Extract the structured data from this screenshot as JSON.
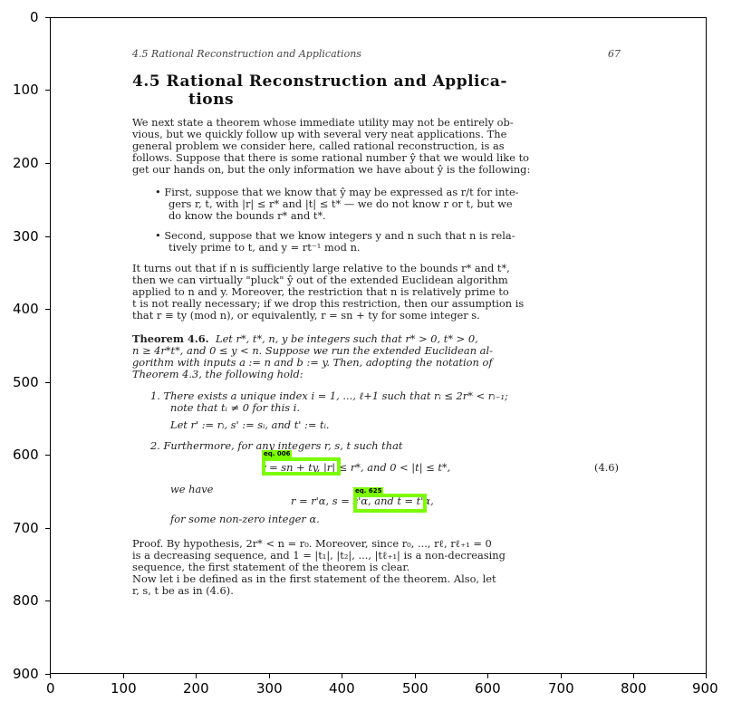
{
  "x_ticks": [
    "0",
    "100",
    "200",
    "300",
    "400",
    "500",
    "600",
    "700",
    "800",
    "900"
  ],
  "y_ticks": [
    "0",
    "100",
    "200",
    "300",
    "400",
    "500",
    "600",
    "700",
    "800",
    "900"
  ],
  "page": {
    "running_head": "4.5  Rational Reconstruction and Applications",
    "page_number": "67",
    "section_title_1": "4.5    Rational Reconstruction and Applica-",
    "section_title_2": "tions",
    "para1": [
      "We next state a theorem whose immediate utility may not be entirely ob-",
      "vious, but we quickly follow up with several very neat applications. The",
      "general problem we consider here, called rational reconstruction, is as",
      "follows. Suppose that there is some rational number ŷ that we would like to",
      "get our hands on, but the only information we have about ŷ is the following:"
    ],
    "bullet1": [
      "• First, suppose that we know that ŷ may be expressed as r/t for inte-",
      "gers r, t, with |r| ≤ r* and |t| ≤ t* — we do not know r or t, but we",
      "do know the bounds r* and t*."
    ],
    "bullet2": [
      "• Second, suppose that we know integers y and n such that n is rela-",
      "tively prime to t, and y = rt⁻¹ mod n."
    ],
    "para2": [
      "It turns out that if n is sufficiently large relative to the bounds r* and t*,",
      "then we can virtually \"pluck\" ŷ out of the extended Euclidean algorithm",
      "applied to n and y. Moreover, the restriction that n is relatively prime to",
      "t is not really necessary; if we drop this restriction, then our assumption is",
      "that r ≡ ty (mod n), or equivalently, r = sn + ty for some integer s."
    ],
    "theorem_label": "Theorem 4.6.",
    "theorem": [
      "Let r*, t*, n, y be integers such that r* > 0, t* > 0,",
      "n ≥ 4r*t*, and 0 ≤ y < n. Suppose we run the extended Euclidean al-",
      "gorithm with inputs a := n and b := y. Then, adopting the notation of",
      "Theorem 4.3, the following hold:"
    ],
    "item1": [
      "1. There exists a unique index i = 1, ..., ℓ+1 such that rᵢ ≤ 2r* < rᵢ₋₁;",
      "note that tᵢ ≠ 0 for this i.",
      "Let r' := rᵢ, s' := sᵢ, and t' := tᵢ."
    ],
    "item2": "2. Furthermore, for any integers r, s, t such that",
    "eq_line": "r = sn + ty,     |r| ≤ r*,   and   0 < |t| ≤ t*,",
    "eq_number": "(4.6)",
    "we_have": "we have",
    "eq2_line": "r = r'α,   s = s'α,   and   t = t'α,",
    "for_some": "for some non-zero integer α.",
    "proof": [
      "Proof. By hypothesis, 2r* < n = r₀. Moreover, since r₀, ..., rℓ, rℓ₊₁ = 0",
      "is a decreasing sequence, and 1 = |t₁|, |t₂|, ..., |tℓ₊₁| is a non-decreasing",
      "sequence, the first statement of the theorem is clear.",
      "    Now let i be defined as in the first statement of the theorem. Also, let",
      "r, s, t be as in (4.6)."
    ]
  },
  "detections": [
    {
      "label": "eq. 006"
    },
    {
      "label": "eq. 625"
    }
  ],
  "colors": {
    "box": "#7cfc00"
  }
}
